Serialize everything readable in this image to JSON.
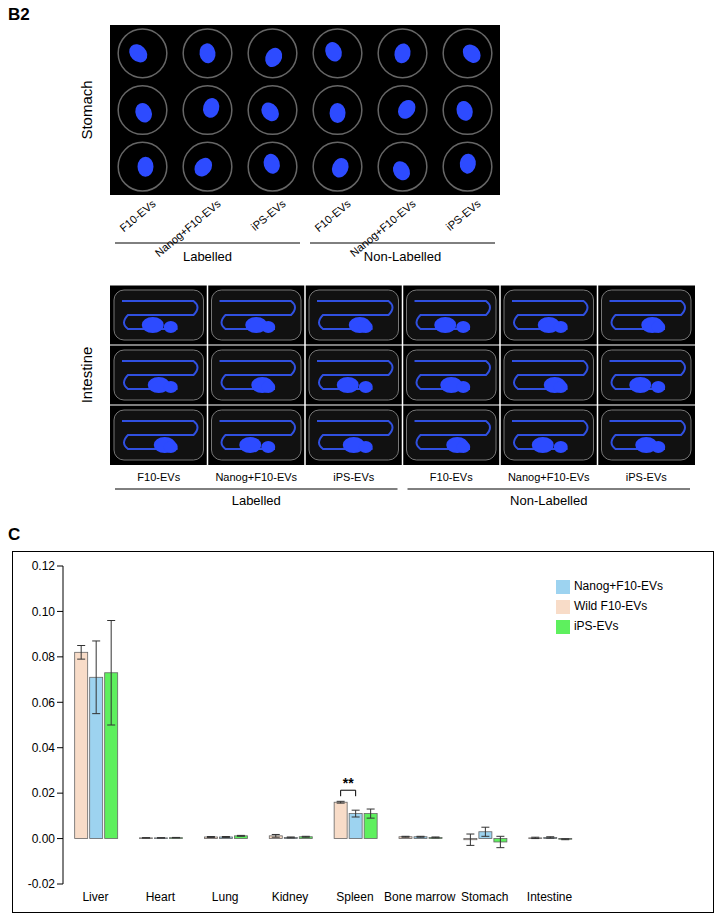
{
  "figure": {
    "panel_b2": {
      "label": "B2",
      "stomach": {
        "label": "Stomach",
        "columns": [
          "F10-EVs",
          "Nanog+F10-EVs",
          "iPS-EVs",
          "F10-EVs",
          "Nanog+F10-EVs",
          "iPS-EVs"
        ],
        "groups": [
          "Labelled",
          "Non-Labelled"
        ]
      },
      "intestine": {
        "label": "Intestine",
        "columns": [
          "F10-EVs",
          "Nanog+F10-EVs",
          "iPS-EVs",
          "F10-EVs",
          "Nanog+F10-EVs",
          "iPS-EVs"
        ],
        "groups": [
          "Labelled",
          "Non-Labelled"
        ]
      }
    },
    "panel_c": {
      "label": "C"
    }
  },
  "chart_data": {
    "type": "bar",
    "categories": [
      "Liver",
      "Heart",
      "Lung",
      "Kidney",
      "Spleen",
      "Bone marrow",
      "Stomach",
      "Intestine"
    ],
    "series": [
      {
        "name": "Wild F10-EVs",
        "color": "#f8dcc8",
        "values": [
          0.082,
          0.0003,
          0.0007,
          0.0012,
          0.016,
          0.0008,
          -0.0005,
          0.0003
        ],
        "errors": [
          0.003,
          0.0001,
          0.0002,
          0.0006,
          0.0004,
          0.0002,
          0.0025,
          0.0003
        ]
      },
      {
        "name": "Nanog+F10-EVs",
        "color": "#9dd3f0",
        "values": [
          0.071,
          0.0003,
          0.0007,
          0.0005,
          0.011,
          0.0008,
          0.003,
          0.0005
        ],
        "errors": [
          0.016,
          0.0001,
          0.0002,
          0.0002,
          0.0015,
          0.0002,
          0.002,
          0.0003
        ]
      },
      {
        "name": "iPS-EVs",
        "color": "#5ef05e",
        "values": [
          0.073,
          0.0004,
          0.0012,
          0.0008,
          0.011,
          0.0005,
          -0.0015,
          -0.0003
        ],
        "errors": [
          0.023,
          0.0001,
          0.0002,
          0.0002,
          0.002,
          0.0002,
          0.0025,
          0.0002
        ]
      }
    ],
    "ylim": [
      -0.02,
      0.12
    ],
    "yticks": [
      -0.02,
      {
        "value": 0,
        "label": "0.00"
      },
      0.02,
      0.04,
      0.06,
      0.08,
      {
        "value": 0.1,
        "label": "0.10"
      },
      0.12
    ],
    "legend": "top-right",
    "grid": false,
    "annotations": [
      {
        "text": "**",
        "category": "Spleen",
        "between": [
          "Wild F10-EVs",
          "Nanog+F10-EVs"
        ]
      }
    ]
  }
}
